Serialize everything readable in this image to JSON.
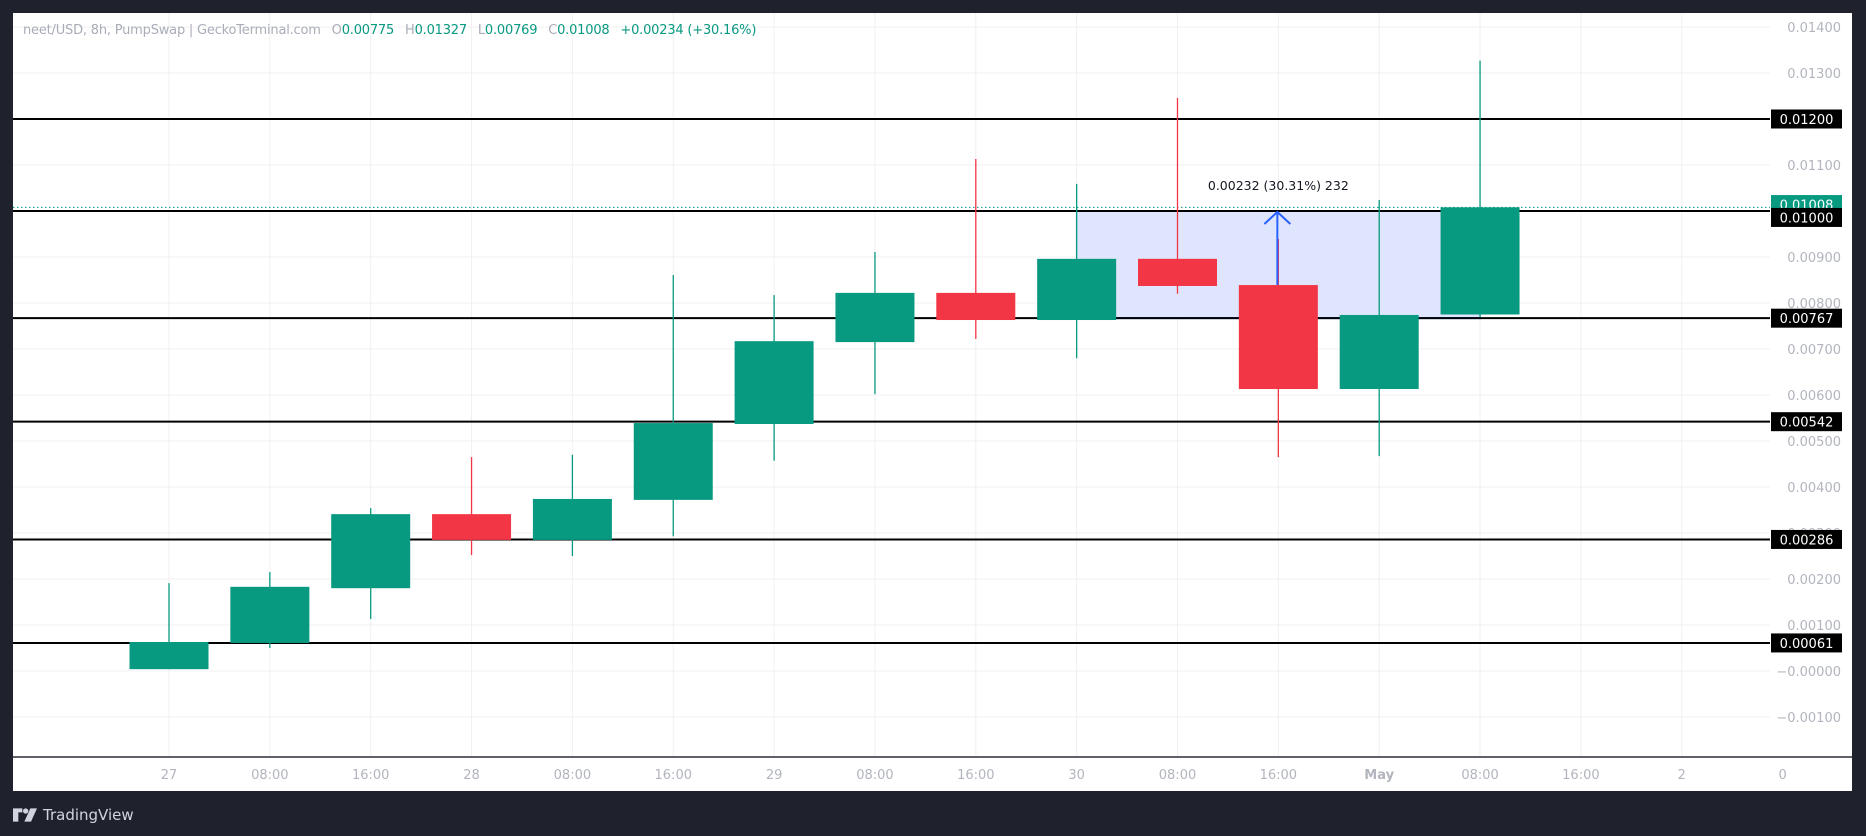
{
  "legend": {
    "symbol": "neet/USD, 8h, PumpSwap | GeckoTerminal.com",
    "o_label": "O",
    "o_value": "0.00775",
    "h_label": "H",
    "h_value": "0.01327",
    "l_label": "L",
    "l_value": "0.00769",
    "c_label": "C",
    "c_value": "0.01008",
    "change": "+0.00234 (+30.16%)"
  },
  "footer": {
    "brand": "TradingView"
  },
  "colors": {
    "up": "#089981",
    "down": "#f23645",
    "level_line": "#000000",
    "measure_fill": "#dfe5fc",
    "measure_line": "#2962ff",
    "grid": "#f0f0f0",
    "axis_text": "#b2b5be",
    "page_bg": "#1f222d",
    "last_price": "#089981"
  },
  "chart_data": {
    "type": "candlestick",
    "title": "neet/USD, 8h, PumpSwap | GeckoTerminal.com",
    "xlabel": "",
    "ylabel": "",
    "ylim": [
      -0.0017,
      0.0143
    ],
    "grid": true,
    "x_tick_labels": [
      "27",
      "08:00",
      "16:00",
      "28",
      "08:00",
      "16:00",
      "29",
      "08:00",
      "16:00",
      "30",
      "08:00",
      "16:00",
      "May",
      "08:00",
      "16:00",
      "2",
      "0"
    ],
    "y_tick_labels": [
      "0.01400",
      "0.01300",
      "0.01200",
      "0.01100",
      "0.01000",
      "0.00900",
      "0.00800",
      "0.00700",
      "0.00600",
      "0.00500",
      "0.00400",
      "0.00300",
      "0.00200",
      "0.00100",
      "−0.00000",
      "−0.00100"
    ],
    "y_ticks": [
      0.014,
      0.013,
      0.012,
      0.011,
      0.01,
      0.009,
      0.008,
      0.007,
      0.006,
      0.005,
      0.004,
      0.003,
      0.002,
      0.001,
      0.0,
      -0.001
    ],
    "candles": [
      {
        "t": "27 00:00",
        "o": 4e-05,
        "h": 0.00191,
        "l": 4e-05,
        "c": 0.00063
      },
      {
        "t": "27 08:00",
        "o": 0.00061,
        "h": 0.00215,
        "l": 0.0005,
        "c": 0.00183
      },
      {
        "t": "27 16:00",
        "o": 0.0018,
        "h": 0.00354,
        "l": 0.00113,
        "c": 0.00341
      },
      {
        "t": "28 00:00",
        "o": 0.00341,
        "h": 0.00465,
        "l": 0.00252,
        "c": 0.00285
      },
      {
        "t": "28 08:00",
        "o": 0.00285,
        "h": 0.0047,
        "l": 0.0025,
        "c": 0.00374
      },
      {
        "t": "28 16:00",
        "o": 0.00372,
        "h": 0.00861,
        "l": 0.00293,
        "c": 0.00539
      },
      {
        "t": "29 00:00",
        "o": 0.00537,
        "h": 0.00817,
        "l": 0.00457,
        "c": 0.00717
      },
      {
        "t": "29 08:00",
        "o": 0.00715,
        "h": 0.00911,
        "l": 0.00602,
        "c": 0.00822
      },
      {
        "t": "29 16:00",
        "o": 0.00822,
        "h": 0.01113,
        "l": 0.00722,
        "c": 0.00763
      },
      {
        "t": "30 00:00",
        "o": 0.00763,
        "h": 0.01059,
        "l": 0.0068,
        "c": 0.00896
      },
      {
        "t": "30 08:00",
        "o": 0.00896,
        "h": 0.01246,
        "l": 0.0082,
        "c": 0.00837
      },
      {
        "t": "30 16:00",
        "o": 0.00839,
        "h": 0.00939,
        "l": 0.00465,
        "c": 0.00613
      },
      {
        "t": "May 1 00:00",
        "o": 0.00613,
        "h": 0.01024,
        "l": 0.00467,
        "c": 0.00774
      },
      {
        "t": "May 1 08:00",
        "o": 0.00775,
        "h": 0.01327,
        "l": 0.00769,
        "c": 0.01008
      }
    ],
    "horizontal_levels": [
      {
        "price": 0.012,
        "label": "0.01200"
      },
      {
        "price": 0.01,
        "label": "0.01000"
      },
      {
        "price": 0.00767,
        "label": "0.00767"
      },
      {
        "price": 0.00542,
        "label": "0.00542"
      },
      {
        "price": 0.00286,
        "label": "0.00286"
      },
      {
        "price": 0.00061,
        "label": "0.00061"
      }
    ],
    "last_price": {
      "price": 0.01008,
      "label": "0.01008"
    },
    "measure": {
      "from_index": 9,
      "to_index": 13,
      "from_price": 0.00767,
      "to_price": 0.01,
      "arrow_index": 11,
      "label": "0.00232 (30.31%) 232"
    },
    "legend_position": "top-left"
  }
}
